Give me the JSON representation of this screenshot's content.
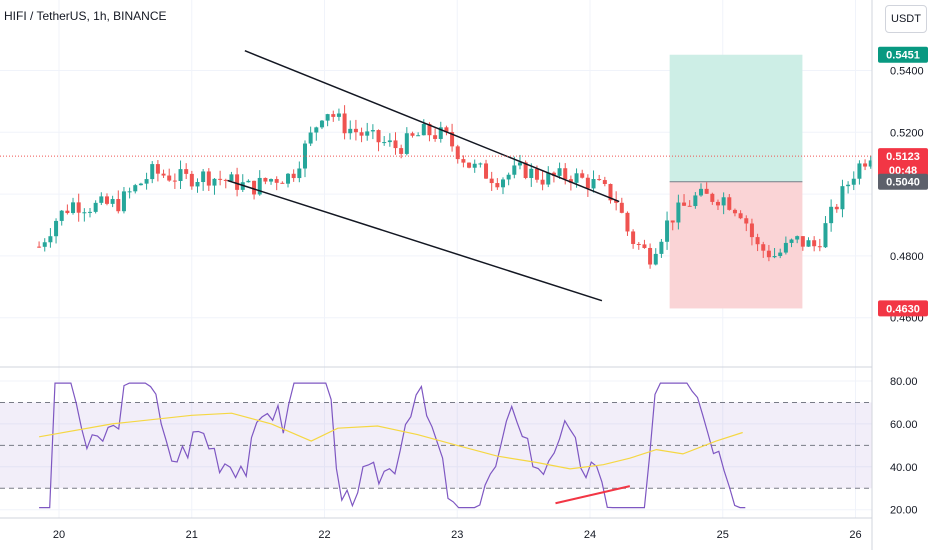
{
  "header": {
    "title": "HIFI / TetherUS, 1h, BINANCE",
    "currency": "USDT"
  },
  "colors": {
    "up": "#26a69a",
    "down": "#ef5350",
    "rsi_line": "#7e57c2",
    "rsi_ma": "#f5d743",
    "target_zone": "#cdeee6",
    "stop_zone": "#fad4d6"
  },
  "price_tags": {
    "target": "0.5451",
    "current": "0.5123",
    "countdown": "00:48",
    "entry": "0.5040",
    "stop": "0.4630"
  },
  "chart_data": {
    "type": "candlestick",
    "symbol": "HIFI / TetherUS",
    "interval": "1h",
    "exchange": "BINANCE",
    "x_tick_labels": [
      "20",
      "21",
      "22",
      "23",
      "24",
      "25",
      "26"
    ],
    "price_axis": {
      "labels": [
        "0.5400",
        "0.5200",
        "0.4800",
        "0.4600"
      ],
      "values": [
        0.54,
        0.52,
        0.48,
        0.46
      ],
      "ylim": [
        0.4406,
        0.5515
      ]
    },
    "close_path": [
      [
        -0.15,
        0.483
      ],
      [
        -0.02,
        0.492
      ],
      [
        0.1,
        0.497
      ],
      [
        0.25,
        0.496
      ],
      [
        0.45,
        0.497
      ],
      [
        0.7,
        0.507
      ],
      [
        0.95,
        0.505
      ],
      [
        1.1,
        0.506
      ],
      [
        1.3,
        0.504
      ],
      [
        1.45,
        0.502
      ],
      [
        1.6,
        0.505
      ],
      [
        1.75,
        0.506
      ],
      [
        1.9,
        0.519
      ],
      [
        2.0,
        0.528
      ],
      [
        2.15,
        0.522
      ],
      [
        2.35,
        0.518
      ],
      [
        2.55,
        0.515
      ],
      [
        2.75,
        0.52
      ],
      [
        2.9,
        0.519
      ],
      [
        3.1,
        0.509
      ],
      [
        3.3,
        0.505
      ],
      [
        3.5,
        0.508
      ],
      [
        3.65,
        0.505
      ],
      [
        3.85,
        0.506
      ],
      [
        4.05,
        0.503
      ],
      [
        4.2,
        0.498
      ],
      [
        4.3,
        0.486
      ],
      [
        4.45,
        0.48
      ],
      [
        4.6,
        0.492
      ],
      [
        4.8,
        0.499
      ],
      [
        5.0,
        0.499
      ],
      [
        5.15,
        0.494
      ],
      [
        5.25,
        0.483
      ],
      [
        5.4,
        0.48
      ],
      [
        5.55,
        0.485
      ],
      [
        5.7,
        0.483
      ],
      [
        5.85,
        0.496
      ],
      [
        6.0,
        0.508
      ],
      [
        6.15,
        0.515
      ],
      [
        6.2,
        0.512
      ]
    ],
    "candle_count": 150,
    "trendlines": [
      {
        "name": "wedge-upper",
        "from": [
          1.4,
          0.5464
        ],
        "to": [
          4.22,
          0.4976
        ]
      },
      {
        "name": "wedge-lower",
        "from": [
          1.27,
          0.5044
        ],
        "to": [
          4.09,
          0.4655
        ]
      }
    ],
    "long_position": {
      "x_range": [
        4.6,
        5.6
      ],
      "target": 0.5451,
      "entry": 0.504,
      "stop": 0.463
    },
    "current_price": 0.5123,
    "rsi": {
      "axis_labels": [
        "80.00",
        "60.00",
        "40.00",
        "20.00"
      ],
      "axis_values": [
        80,
        60,
        40,
        20
      ],
      "ylim": [
        17.5,
        86
      ],
      "upper_band": 70,
      "middle_band": 50,
      "lower_band": 30,
      "ma_path": [
        [
          -0.15,
          54
        ],
        [
          0.4,
          60
        ],
        [
          1.0,
          64
        ],
        [
          1.3,
          65
        ],
        [
          1.6,
          60
        ],
        [
          1.9,
          52
        ],
        [
          2.1,
          58
        ],
        [
          2.4,
          59
        ],
        [
          2.7,
          55
        ],
        [
          3.0,
          50
        ],
        [
          3.3,
          45
        ],
        [
          3.6,
          42
        ],
        [
          3.85,
          39
        ],
        [
          4.1,
          41
        ],
        [
          4.3,
          44
        ],
        [
          4.5,
          48
        ],
        [
          4.7,
          46
        ],
        [
          4.95,
          52
        ],
        [
          5.15,
          56
        ]
      ],
      "divergence_line": {
        "from": [
          3.74,
          23
        ],
        "to": [
          4.3,
          31
        ]
      }
    }
  }
}
